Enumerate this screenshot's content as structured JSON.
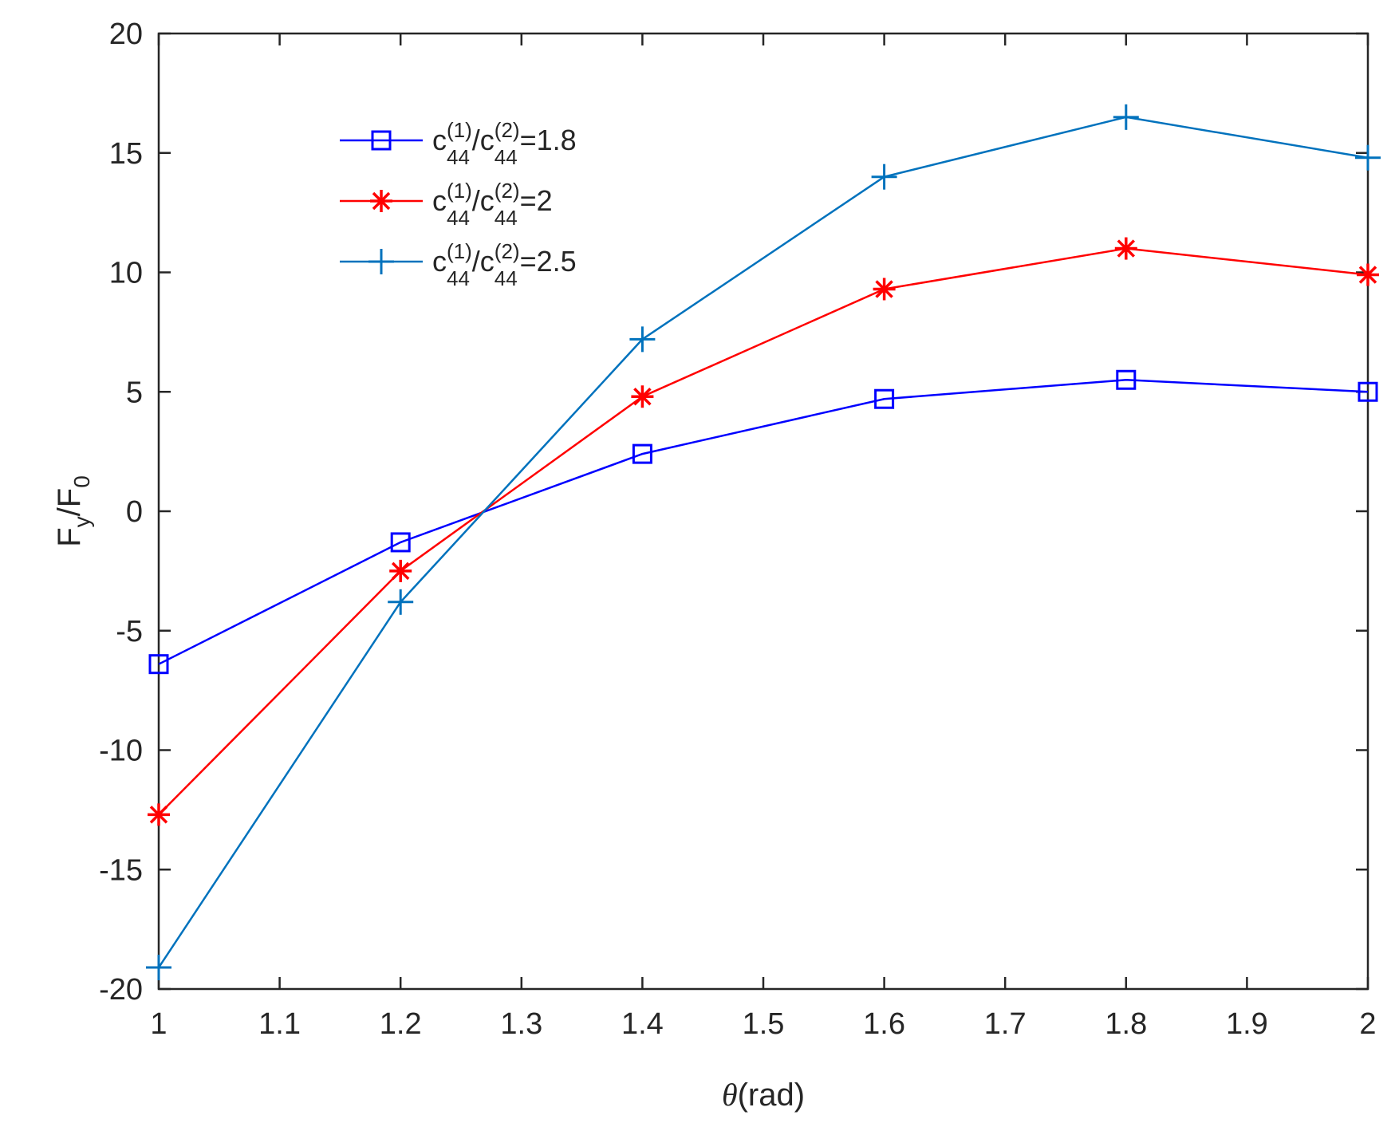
{
  "chart_data": {
    "type": "line",
    "title": "",
    "xlabel": {
      "symbol": "θ",
      "unit": "(rad)"
    },
    "ylabel": {
      "base": "F",
      "sub1": "y",
      "slash": "/F",
      "sub2": "0"
    },
    "xlim": [
      1,
      2
    ],
    "ylim": [
      -20,
      20
    ],
    "x_ticks": [
      1,
      1.1,
      1.2,
      1.3,
      1.4,
      1.5,
      1.6,
      1.7,
      1.8,
      1.9,
      2
    ],
    "x_tick_labels": [
      "1",
      "1.1",
      "1.2",
      "1.3",
      "1.4",
      "1.5",
      "1.6",
      "1.7",
      "1.8",
      "1.9",
      "2"
    ],
    "y_ticks": [
      -20,
      -15,
      -10,
      -5,
      0,
      5,
      10,
      15,
      20
    ],
    "y_tick_labels": [
      "-20",
      "-15",
      "-10",
      "-5",
      "0",
      "5",
      "10",
      "15",
      "20"
    ],
    "grid": false,
    "legend_position": "top-left",
    "x": [
      1.0,
      1.2,
      1.4,
      1.6,
      1.8,
      2.0
    ],
    "series": [
      {
        "name": "c44(1)/c44(2)=1.8",
        "legend": {
          "c": "c",
          "sub": "44",
          "sup1": "(1)",
          "slash": "/c",
          "sup2": "(2)",
          "tail": "=1.8"
        },
        "marker": "square",
        "color": "#0000ff",
        "values": [
          -6.4,
          -1.3,
          2.4,
          4.7,
          5.5,
          5.0
        ]
      },
      {
        "name": "c44(1)/c44(2)=2",
        "legend": {
          "c": "c",
          "sub": "44",
          "sup1": "(1)",
          "slash": "/c",
          "sup2": "(2)",
          "tail": "=2"
        },
        "marker": "asterisk",
        "color": "#ff0000",
        "values": [
          -12.7,
          -2.5,
          4.8,
          9.3,
          11.0,
          9.9
        ]
      },
      {
        "name": "c44(1)/c44(2)=2.5",
        "legend": {
          "c": "c",
          "sub": "44",
          "sup1": "(1)",
          "slash": "/c",
          "sup2": "(2)",
          "tail": "=2.5"
        },
        "marker": "plus",
        "color": "#0072bd",
        "values": [
          -19.1,
          -3.8,
          7.2,
          14.0,
          16.5,
          14.8
        ]
      }
    ]
  }
}
